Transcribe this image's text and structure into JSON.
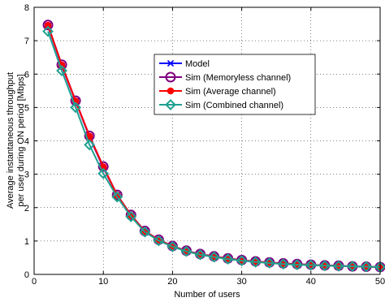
{
  "chart_data": {
    "type": "line",
    "title": "",
    "xlabel": "Number of users",
    "ylabel_lines": [
      "Average instantaneous throughput",
      "per user during ON period [Mbps]"
    ],
    "xlim": [
      0,
      50
    ],
    "ylim": [
      0,
      8
    ],
    "xticks": [
      0,
      10,
      20,
      30,
      40,
      50
    ],
    "yticks": [
      0,
      1,
      2,
      3,
      4,
      5,
      6,
      7,
      8
    ],
    "grid": true,
    "legend_position": "top-right",
    "x": [
      2,
      4,
      6,
      8,
      10,
      12,
      14,
      16,
      18,
      20,
      22,
      24,
      26,
      28,
      30,
      32,
      34,
      36,
      38,
      40,
      42,
      44,
      46,
      48,
      50
    ],
    "series": [
      {
        "name": "Model",
        "color": "#0000ff",
        "marker": "x",
        "values": [
          7.45,
          6.25,
          5.18,
          4.12,
          3.2,
          2.37,
          1.77,
          1.29,
          1.03,
          0.84,
          0.7,
          0.6,
          0.53,
          0.47,
          0.42,
          0.38,
          0.35,
          0.32,
          0.3,
          0.28,
          0.27,
          0.25,
          0.24,
          0.23,
          0.22
        ]
      },
      {
        "name": "Sim (Memoryless channel)",
        "color": "#800080",
        "marker": "circle",
        "values": [
          7.47,
          6.28,
          5.2,
          4.15,
          3.23,
          2.38,
          1.78,
          1.3,
          1.04,
          0.85,
          0.71,
          0.61,
          0.54,
          0.48,
          0.43,
          0.39,
          0.36,
          0.33,
          0.31,
          0.29,
          0.27,
          0.26,
          0.24,
          0.23,
          0.22
        ]
      },
      {
        "name": "Sim (Average channel)",
        "color": "#ff0000",
        "marker": "dot",
        "values": [
          7.46,
          6.27,
          5.19,
          4.14,
          3.22,
          2.37,
          1.77,
          1.29,
          1.03,
          0.84,
          0.7,
          0.6,
          0.53,
          0.47,
          0.42,
          0.38,
          0.35,
          0.32,
          0.3,
          0.28,
          0.27,
          0.25,
          0.24,
          0.23,
          0.22
        ]
      },
      {
        "name": "Sim (Combined channel)",
        "color": "#20a090",
        "marker": "diamond",
        "values": [
          7.28,
          6.1,
          5.0,
          3.88,
          3.02,
          2.32,
          1.73,
          1.27,
          1.01,
          0.83,
          0.69,
          0.59,
          0.52,
          0.46,
          0.41,
          0.37,
          0.34,
          0.31,
          0.29,
          0.28,
          0.26,
          0.25,
          0.24,
          0.23,
          0.22
        ]
      }
    ]
  }
}
